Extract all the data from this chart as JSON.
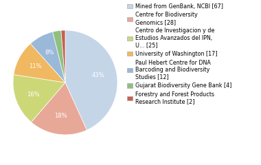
{
  "labels": [
    "Mined from GenBank, NCBI [67]",
    "Centre for Biodiversity\nGenomics [28]",
    "Centro de Investigacion y de\nEstudios Avanzados del IPN,\nU... [25]",
    "University of Washington [17]",
    "Paul Hebert Centre for DNA\nBarcoding and Biodiversity\nStudies [12]",
    "Gujarat Biodiversity Gene Bank [4]",
    "Forestry and Forest Products\nResearch Institute [2]"
  ],
  "values": [
    67,
    28,
    25,
    17,
    12,
    4,
    2
  ],
  "colors": [
    "#c5d5e8",
    "#e8a898",
    "#ccd878",
    "#f0b860",
    "#9ab8d8",
    "#90c080",
    "#c86050"
  ],
  "background_color": "#ffffff",
  "fontsize_pct": 6.0,
  "fontsize_legend": 5.8
}
